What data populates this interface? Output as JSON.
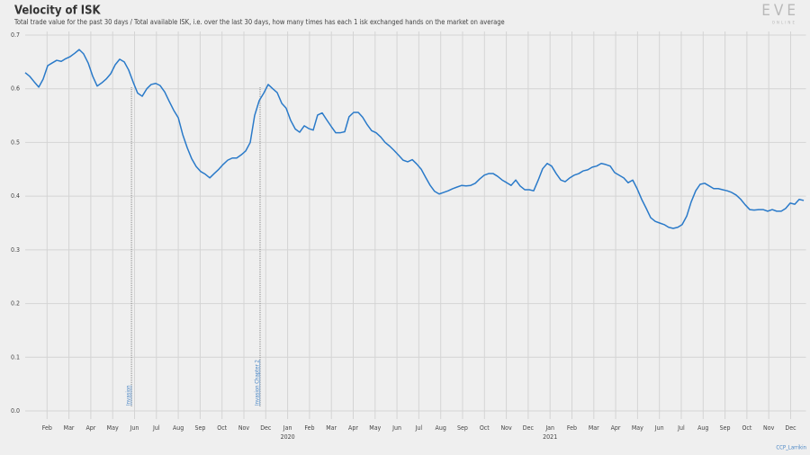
{
  "chart_data": {
    "type": "line",
    "title": "Velocity of ISK",
    "subtitle": "Total trade value for the past 30 days / Total available ISK, i.e. over the last 30 days, how many times has each 1 isk exchanged hands on the market on average",
    "logo": "EVE",
    "logo_sub": "ONLINE",
    "credit": "CCP_Larrikin",
    "color": "#2a7ac9",
    "grid": true,
    "xlim": [
      0,
      35.7
    ],
    "ylim": [
      0,
      0.7
    ],
    "yticks": [
      {
        "value": 0,
        "label": "0.0"
      },
      0.1,
      0.2,
      0.3,
      0.4,
      0.5,
      0.6,
      0.7
    ],
    "xticks": [
      {
        "value": 1,
        "label": "Feb"
      },
      {
        "value": 2,
        "label": "Mar"
      },
      {
        "value": 3,
        "label": "Apr"
      },
      {
        "value": 4,
        "label": "May"
      },
      {
        "value": 5,
        "label": "Jun"
      },
      {
        "value": 6,
        "label": "Jul"
      },
      {
        "value": 7,
        "label": "Aug"
      },
      {
        "value": 8,
        "label": "Sep"
      },
      {
        "value": 9,
        "label": "Oct"
      },
      {
        "value": 10,
        "label": "Nov"
      },
      {
        "value": 11,
        "label": "Dec"
      },
      {
        "value": 12,
        "label": "Jan"
      },
      {
        "value": 13,
        "label": "Feb"
      },
      {
        "value": 14,
        "label": "Mar"
      },
      {
        "value": 15,
        "label": "Apr"
      },
      {
        "value": 16,
        "label": "May"
      },
      {
        "value": 17,
        "label": "Jun"
      },
      {
        "value": 18,
        "label": "Jul"
      },
      {
        "value": 19,
        "label": "Aug"
      },
      {
        "value": 20,
        "label": "Sep"
      },
      {
        "value": 21,
        "label": "Oct"
      },
      {
        "value": 22,
        "label": "Nov"
      },
      {
        "value": 23,
        "label": "Dec"
      },
      {
        "value": 24,
        "label": "Jan"
      },
      {
        "value": 25,
        "label": "Feb"
      },
      {
        "value": 26,
        "label": "Mar"
      },
      {
        "value": 27,
        "label": "Apr"
      },
      {
        "value": 28,
        "label": "May"
      },
      {
        "value": 29,
        "label": "Jun"
      },
      {
        "value": 30,
        "label": "Jul"
      },
      {
        "value": 31,
        "label": "Aug"
      },
      {
        "value": 32,
        "label": "Sep"
      },
      {
        "value": 33,
        "label": "Oct"
      },
      {
        "value": 34,
        "label": "Nov"
      },
      {
        "value": 35,
        "label": "Dec"
      }
    ],
    "year_labels": [
      {
        "value": 12,
        "label": "2020"
      },
      {
        "value": 24,
        "label": "2021"
      }
    ],
    "annotations": [
      {
        "x": 4.86,
        "label": "Invasion"
      },
      {
        "x": 10.74,
        "label": "Invasion Chapter 2"
      }
    ],
    "x": [
      0,
      0.21,
      0.41,
      0.62,
      0.82,
      1.03,
      1.23,
      1.44,
      1.65,
      1.85,
      2.06,
      2.26,
      2.47,
      2.67,
      2.88,
      3.09,
      3.29,
      3.5,
      3.7,
      3.91,
      4.12,
      4.32,
      4.53,
      4.73,
      4.94,
      5.14,
      5.35,
      5.56,
      5.76,
      5.97,
      6.17,
      6.38,
      6.58,
      6.79,
      7,
      7.2,
      7.41,
      7.61,
      7.82,
      8.02,
      8.23,
      8.44,
      8.64,
      8.85,
      9.05,
      9.26,
      9.47,
      9.67,
      9.88,
      10.08,
      10.29,
      10.49,
      10.7,
      10.91,
      11.11,
      11.32,
      11.52,
      11.73,
      11.93,
      12.14,
      12.35,
      12.55,
      12.76,
      12.96,
      13.17,
      13.37,
      13.58,
      13.79,
      13.99,
      14.2,
      14.4,
      14.61,
      14.81,
      15.02,
      15.23,
      15.43,
      15.64,
      15.84,
      16.05,
      16.26,
      16.46,
      16.67,
      16.87,
      17.08,
      17.28,
      17.49,
      17.7,
      17.9,
      18.11,
      18.31,
      18.52,
      18.72,
      18.93,
      19.14,
      19.34,
      19.55,
      19.75,
      19.96,
      20.16,
      20.37,
      20.58,
      20.78,
      20.99,
      21.19,
      21.4,
      21.6,
      21.81,
      22.02,
      22.22,
      22.43,
      22.63,
      22.84,
      23.05,
      23.25,
      23.46,
      23.66,
      23.87,
      24.07,
      24.28,
      24.49,
      24.69,
      24.9,
      25.1,
      25.31,
      25.51,
      25.72,
      25.93,
      26.13,
      26.34,
      26.54,
      26.75,
      26.95,
      27.16,
      27.37,
      27.57,
      27.78,
      27.98,
      28.19,
      28.4,
      28.6,
      28.81,
      29.01,
      29.22,
      29.42,
      29.63,
      29.84,
      30.04,
      30.25,
      30.45,
      30.66,
      30.86,
      31.07,
      31.28,
      31.48,
      31.69,
      31.89,
      32.1,
      32.3,
      32.51,
      32.72,
      32.92,
      33.13,
      33.33,
      33.54,
      33.74,
      33.95,
      34.16,
      34.36,
      34.57,
      34.77,
      34.98,
      35.19,
      35.39,
      35.6
    ],
    "values": [
      0.63,
      0.623,
      0.613,
      0.603,
      0.618,
      0.643,
      0.648,
      0.653,
      0.651,
      0.656,
      0.66,
      0.666,
      0.673,
      0.665,
      0.648,
      0.623,
      0.605,
      0.611,
      0.618,
      0.628,
      0.645,
      0.655,
      0.65,
      0.635,
      0.612,
      0.592,
      0.586,
      0.6,
      0.608,
      0.61,
      0.606,
      0.594,
      0.577,
      0.56,
      0.546,
      0.515,
      0.49,
      0.47,
      0.455,
      0.446,
      0.441,
      0.434,
      0.442,
      0.45,
      0.459,
      0.467,
      0.471,
      0.471,
      0.477,
      0.484,
      0.5,
      0.55,
      0.578,
      0.592,
      0.608,
      0.6,
      0.593,
      0.573,
      0.564,
      0.541,
      0.525,
      0.519,
      0.531,
      0.526,
      0.523,
      0.551,
      0.555,
      0.542,
      0.53,
      0.518,
      0.518,
      0.52,
      0.548,
      0.556,
      0.556,
      0.547,
      0.533,
      0.522,
      0.518,
      0.51,
      0.5,
      0.493,
      0.485,
      0.476,
      0.467,
      0.464,
      0.468,
      0.46,
      0.45,
      0.435,
      0.42,
      0.409,
      0.404,
      0.407,
      0.41,
      0.414,
      0.417,
      0.42,
      0.419,
      0.42,
      0.424,
      0.432,
      0.439,
      0.442,
      0.442,
      0.437,
      0.43,
      0.425,
      0.42,
      0.43,
      0.419,
      0.412,
      0.412,
      0.41,
      0.43,
      0.451,
      0.461,
      0.456,
      0.442,
      0.43,
      0.427,
      0.434,
      0.439,
      0.442,
      0.447,
      0.449,
      0.454,
      0.456,
      0.461,
      0.459,
      0.456,
      0.444,
      0.439,
      0.434,
      0.425,
      0.43,
      0.414,
      0.394,
      0.377,
      0.36,
      0.353,
      0.35,
      0.347,
      0.342,
      0.34,
      0.342,
      0.347,
      0.363,
      0.389,
      0.41,
      0.422,
      0.424,
      0.419,
      0.414,
      0.414,
      0.412,
      0.41,
      0.407,
      0.402,
      0.394,
      0.384,
      0.375,
      0.374,
      0.375,
      0.375,
      0.372,
      0.375,
      0.372,
      0.372,
      0.377,
      0.387,
      0.385,
      0.394,
      0.392
    ]
  }
}
